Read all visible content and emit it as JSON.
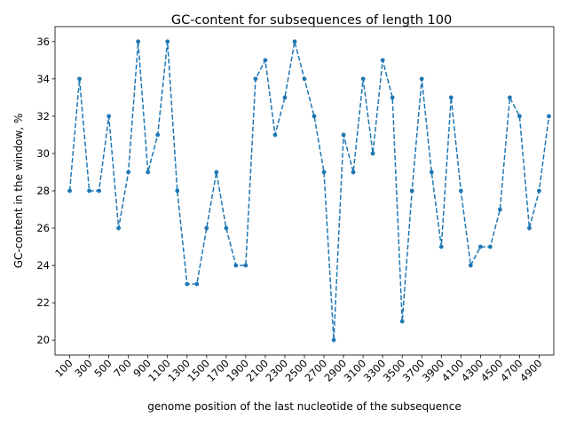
{
  "chart_data": {
    "type": "line",
    "title": "GC-content for subsequences of length 100",
    "xlabel": "genome position of the last nucleotide of the subsequence",
    "ylabel": "GC-content in the window, %",
    "x_ticks": [
      "100",
      "300",
      "500",
      "700",
      "900",
      "1100",
      "1300",
      "1500",
      "1700",
      "1900",
      "2100",
      "2300",
      "2500",
      "2700",
      "2900",
      "3100",
      "3300",
      "3500",
      "3700",
      "3900",
      "4100",
      "4300",
      "4500",
      "4700",
      "4900"
    ],
    "y_ticks": [
      "20",
      "22",
      "24",
      "26",
      "28",
      "30",
      "32",
      "34",
      "36"
    ],
    "xlim": [
      -50,
      5050
    ],
    "ylim": [
      19.2,
      36.8
    ],
    "grid": false,
    "line_style": "dashed",
    "marker": "dot",
    "color": "#1f77b4",
    "x": [
      100,
      200,
      300,
      400,
      500,
      600,
      700,
      800,
      900,
      1000,
      1100,
      1200,
      1300,
      1400,
      1500,
      1600,
      1700,
      1800,
      1900,
      2000,
      2100,
      2200,
      2300,
      2400,
      2500,
      2600,
      2700,
      2800,
      2900,
      3000,
      3100,
      3200,
      3300,
      3400,
      3500,
      3600,
      3700,
      3800,
      3900,
      4000,
      4100,
      4200,
      4300,
      4400,
      4500,
      4600,
      4700,
      4800,
      4900,
      5000
    ],
    "y": [
      28,
      34,
      28,
      28,
      32,
      26,
      29,
      36,
      29,
      31,
      36,
      28,
      23,
      23,
      26,
      29,
      26,
      24,
      24,
      34,
      35,
      31,
      33,
      36,
      34,
      32,
      29,
      20,
      31,
      29,
      34,
      30,
      35,
      33,
      21,
      28,
      34,
      29,
      25,
      33,
      28,
      24,
      25,
      25,
      27,
      33,
      32,
      26,
      28,
      32
    ]
  }
}
